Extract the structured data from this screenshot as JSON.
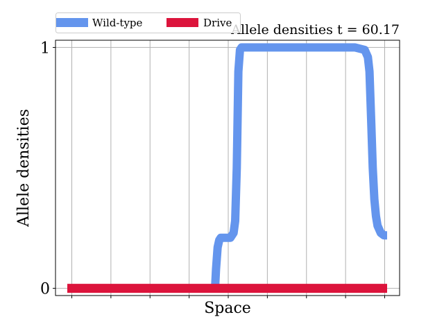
{
  "chart_data": {
    "type": "line",
    "title": "Allele densities t = 60.17",
    "xlabel": "Space",
    "ylabel": "Allele densities",
    "xlim": [
      0,
      1
    ],
    "ylim": [
      -0.03,
      1.03
    ],
    "yticks": [
      0,
      1
    ],
    "ytick_labels": [
      "0",
      "1"
    ],
    "xticks_count": 9,
    "xtick_labels_visible": false,
    "grid": "vertical and horizontal at ticks",
    "legend_position": "top-left, outside plot",
    "series": [
      {
        "name": "Wild-type",
        "color": "#6495ED",
        "x": [
          0.462,
          0.465,
          0.47,
          0.475,
          0.48,
          0.49,
          0.5,
          0.51,
          0.52,
          0.525,
          0.53,
          0.535,
          0.54,
          0.545,
          0.55,
          0.56,
          0.6,
          0.7,
          0.8,
          0.9,
          0.93,
          0.94,
          0.945,
          0.95,
          0.955,
          0.96,
          0.965,
          0.97,
          0.98,
          0.99,
          1.0
        ],
        "y": [
          0.0,
          0.08,
          0.17,
          0.2,
          0.21,
          0.21,
          0.21,
          0.21,
          0.23,
          0.28,
          0.5,
          0.9,
          0.99,
          1.0,
          1.0,
          1.0,
          1.0,
          1.0,
          1.0,
          1.0,
          0.99,
          0.96,
          0.9,
          0.7,
          0.5,
          0.37,
          0.3,
          0.26,
          0.23,
          0.22,
          0.22
        ]
      },
      {
        "name": "Drive",
        "color": "#DC143C",
        "x": [
          0,
          1
        ],
        "y": [
          0,
          0
        ]
      }
    ]
  }
}
